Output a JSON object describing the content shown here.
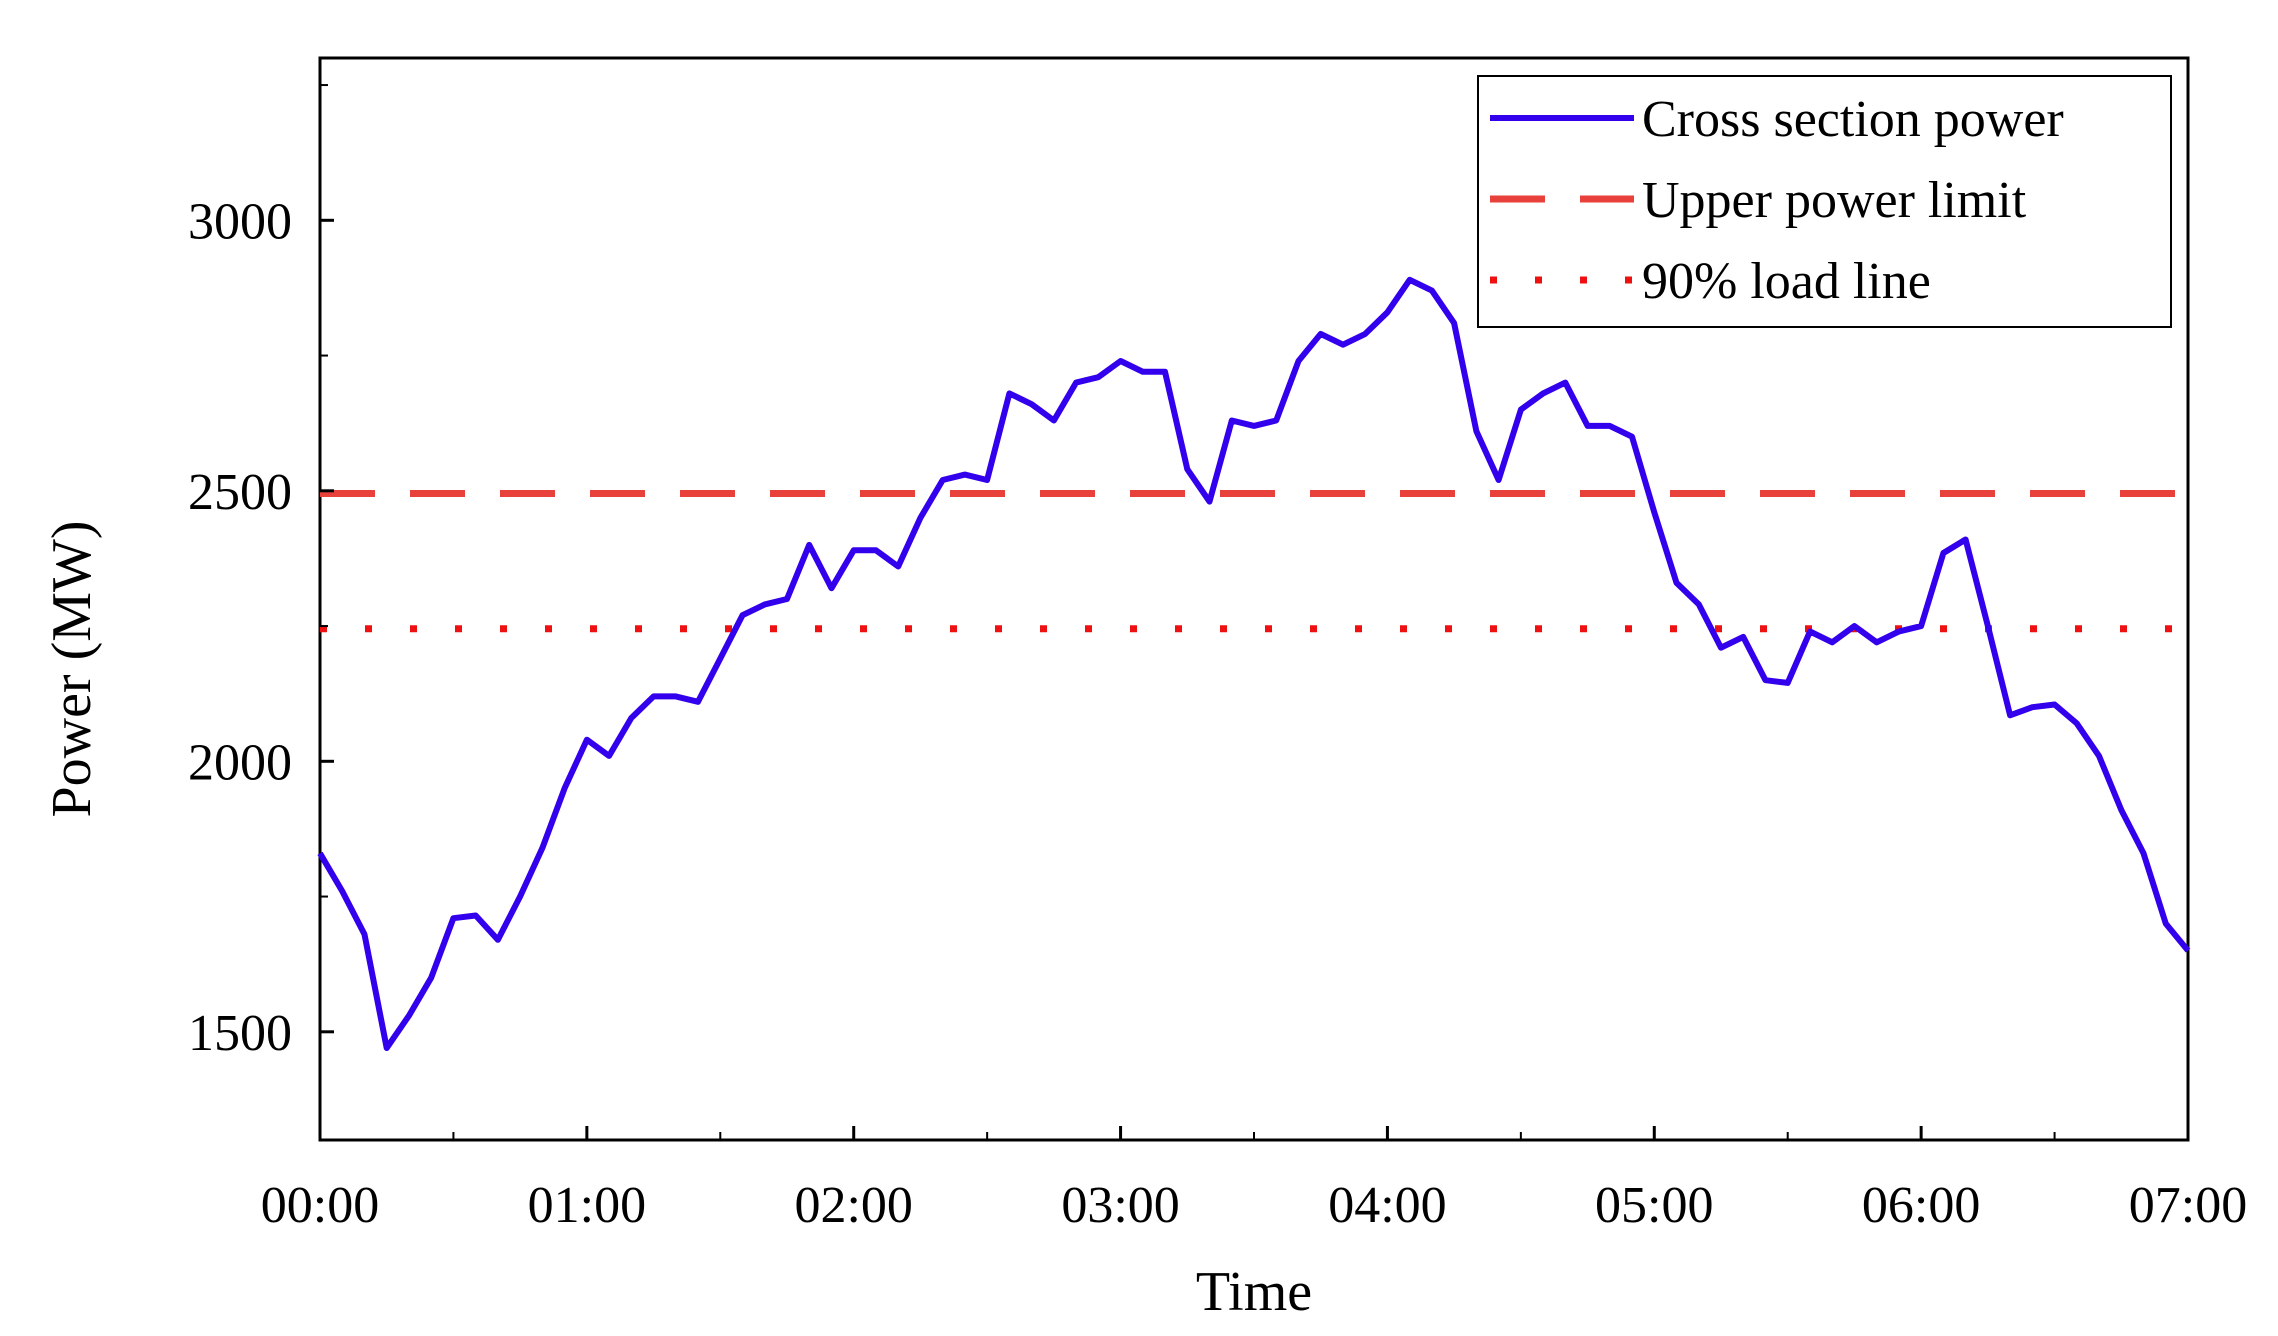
{
  "chart_data": {
    "type": "line",
    "title": "",
    "xlabel": "Time",
    "ylabel": "Power (MW)",
    "x_ticks": [
      {
        "value": 0,
        "label": "00:00"
      },
      {
        "value": 60,
        "label": "01:00"
      },
      {
        "value": 120,
        "label": "02:00"
      },
      {
        "value": 180,
        "label": "03:00"
      },
      {
        "value": 240,
        "label": "04:00"
      },
      {
        "value": 300,
        "label": "05:00"
      },
      {
        "value": 360,
        "label": "06:00"
      },
      {
        "value": 420,
        "label": "07:00"
      }
    ],
    "y_ticks": [
      {
        "value": 1500,
        "label": "1500"
      },
      {
        "value": 2000,
        "label": "2000"
      },
      {
        "value": 2500,
        "label": "2500"
      },
      {
        "value": 3000,
        "label": "3000"
      }
    ],
    "xlim": [
      0,
      420
    ],
    "ylim": [
      1300,
      3300
    ],
    "grid": false,
    "legend_position": "top-right",
    "x_unit": "minutes since 00:00",
    "series": [
      {
        "name": "Cross section power",
        "style": "solid",
        "color": "#3300ee",
        "x": [
          0,
          5,
          10,
          15,
          20,
          25,
          30,
          35,
          40,
          45,
          50,
          55,
          60,
          65,
          70,
          75,
          80,
          85,
          90,
          95,
          100,
          105,
          110,
          115,
          120,
          125,
          130,
          135,
          140,
          145,
          150,
          155,
          160,
          165,
          170,
          175,
          180,
          185,
          190,
          195,
          200,
          205,
          210,
          215,
          220,
          225,
          230,
          235,
          240,
          245,
          250,
          255,
          260,
          265,
          270,
          275,
          280,
          285,
          290,
          295,
          300,
          305,
          310,
          315,
          320,
          325,
          330,
          335,
          340,
          345,
          350,
          355,
          360,
          365,
          370,
          375,
          380,
          385,
          390,
          395,
          400,
          405,
          410,
          415,
          420
        ],
        "values": [
          1830,
          1760,
          1680,
          1470,
          1530,
          1600,
          1710,
          1715,
          1670,
          1750,
          1840,
          1950,
          2040,
          2010,
          2080,
          2120,
          2120,
          2110,
          2190,
          2270,
          2290,
          2300,
          2400,
          2320,
          2390,
          2390,
          2360,
          2450,
          2520,
          2530,
          2520,
          2680,
          2660,
          2630,
          2700,
          2710,
          2740,
          2720,
          2720,
          2540,
          2480,
          2630,
          2620,
          2630,
          2740,
          2790,
          2770,
          2790,
          2830,
          2890,
          2870,
          2810,
          2610,
          2520,
          2650,
          2680,
          2700,
          2620,
          2620,
          2600,
          2460,
          2330,
          2290,
          2210,
          2230,
          2150,
          2145,
          2240,
          2220,
          2250,
          2220,
          2240,
          2250,
          2385,
          2410,
          2250,
          2085,
          2100,
          2105,
          2070,
          2010,
          1910,
          1830,
          1700,
          1650
        ]
      },
      {
        "name": "Upper power limit",
        "style": "dashed",
        "color": "#e8403a",
        "x": [
          0,
          420
        ],
        "values": [
          2495,
          2495
        ]
      },
      {
        "name": "90% load line",
        "style": "dotted",
        "color": "#ee1111",
        "x": [
          0,
          420
        ],
        "values": [
          2245,
          2245
        ]
      }
    ]
  }
}
